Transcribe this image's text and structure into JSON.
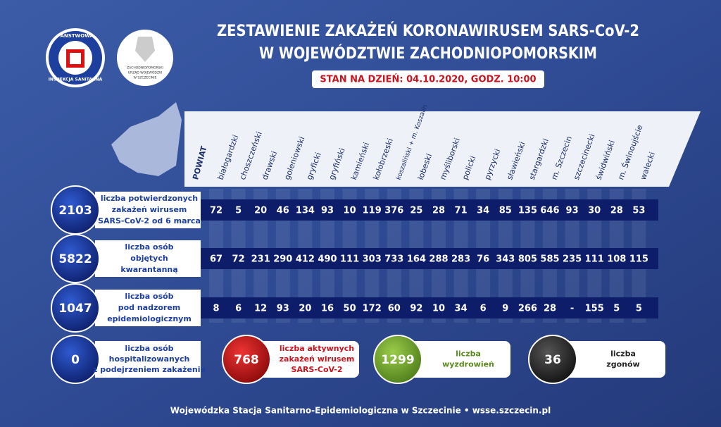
{
  "header": {
    "title_lines": [
      "ZESTAWIENIE ZAKAŻEŃ KORONAWIRUSEM SARS-CoV-2",
      "W WOJEWÓDZTWIE ZACHODNIOPOMORSKIM"
    ],
    "status": "STAN NA DZIEŃ: 04.10.2020, GODZ. 10:00"
  },
  "logos": {
    "pis_top": "PAŃSTWOWA",
    "pis_bottom": "INSPEKCJA SANITARNA",
    "urzad_lines": [
      "ZACHODNIOPOMORSKI",
      "URZĄD WOJEWÓDZKI",
      "W SZCZECINIE"
    ]
  },
  "table": {
    "corner": "POWIAT",
    "columns": [
      "białogardzki",
      "choszczeński",
      "drawski",
      "goleniowski",
      "gryficki",
      "gryfiński",
      "kamieński",
      "kołobrzeski",
      "koszaliński + m. Koszalin",
      "łobeski",
      "myśliborski",
      "policki",
      "pyrzycki",
      "sławieński",
      "stargardzki",
      "m. Szczecin",
      "szczecinecki",
      "świdwiński",
      "m. Świnoujście",
      "wałecki"
    ],
    "rows": [
      {
        "total": 2103,
        "label_lines": [
          "liczba potwierdzonych",
          "zakażeń wirusem",
          "SARS-CoV-2 od 6 marca"
        ],
        "values": [
          72,
          5,
          20,
          46,
          134,
          93,
          10,
          119,
          376,
          25,
          28,
          71,
          34,
          85,
          135,
          646,
          93,
          30,
          28,
          53
        ]
      },
      {
        "total": 5822,
        "label_lines": [
          "liczba osób",
          "objętych",
          "kwarantanną"
        ],
        "values": [
          67,
          72,
          231,
          290,
          412,
          490,
          111,
          303,
          733,
          164,
          288,
          283,
          76,
          343,
          805,
          585,
          235,
          111,
          108,
          115
        ]
      },
      {
        "total": 1047,
        "label_lines": [
          "liczba osób",
          "pod nadzorem",
          "epidemiologicznym"
        ],
        "values": [
          8,
          6,
          12,
          93,
          20,
          16,
          50,
          172,
          60,
          92,
          10,
          34,
          6,
          9,
          266,
          28,
          "-",
          155,
          5,
          5
        ]
      }
    ]
  },
  "summary": [
    {
      "value": 0,
      "label_lines": [
        "liczba osób",
        "hospitalizowanych",
        "z podejrzeniem zakażenia"
      ]
    },
    {
      "value": 768,
      "label_lines": [
        "liczba aktywnych",
        "zakażeń wirusem",
        "SARS-CoV-2"
      ]
    },
    {
      "value": 1299,
      "label_lines": [
        "liczba",
        "wyzdrowień"
      ]
    },
    {
      "value": 36,
      "label_lines": [
        "liczba",
        "zgonów"
      ]
    }
  ],
  "footer": "Wojewódzka Stacja Sanitarno-Epidemiologiczna w Szczecinie  •  wsse.szczecin.pl"
}
